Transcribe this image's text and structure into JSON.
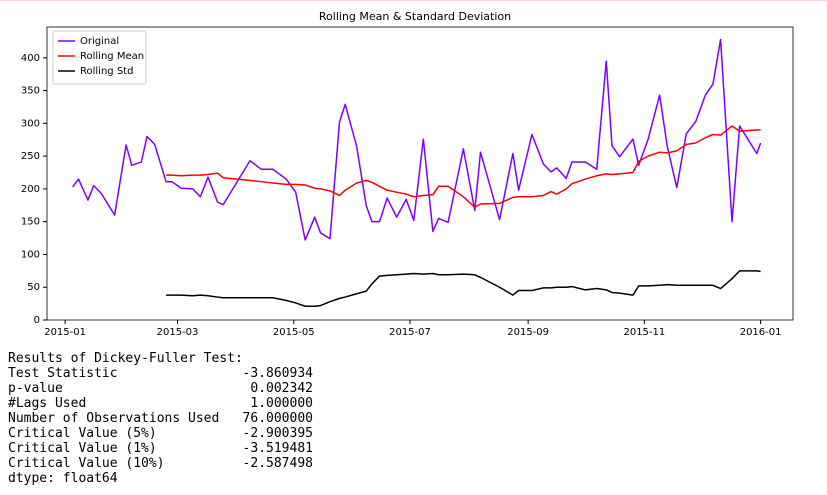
{
  "chart_data": {
    "type": "line",
    "title": "Rolling Mean & Standard Deviation",
    "x": [
      4,
      7,
      12,
      15,
      19,
      26,
      32,
      35,
      40,
      43,
      47,
      53,
      56,
      61,
      67,
      71,
      75,
      80,
      83,
      97,
      103,
      109,
      116,
      121,
      126,
      131,
      134,
      139,
      144,
      147,
      153,
      158,
      161,
      165,
      169,
      174,
      179,
      183,
      188,
      193,
      196,
      201,
      209,
      215,
      218,
      228,
      235,
      238,
      245,
      251,
      255,
      258,
      263,
      266,
      273,
      279,
      284,
      287,
      291,
      298,
      301,
      306,
      312,
      316,
      321,
      326,
      331,
      336,
      340,
      344,
      350,
      354,
      363,
      365
    ],
    "series": [
      {
        "name": "Original",
        "color": "#7f00ff",
        "values": [
          203,
          215,
          183,
          205,
          193,
          160,
          267,
          236,
          241,
          280,
          268,
          211,
          211,
          201,
          200,
          188,
          218,
          180,
          176,
          243,
          230,
          230,
          215,
          195,
          122,
          157,
          133,
          124,
          302,
          329,
          265,
          175,
          150,
          150,
          186,
          157,
          184,
          152,
          276,
          135,
          155,
          149,
          261,
          167,
          256,
          153,
          254,
          198,
          283,
          238,
          226,
          232,
          216,
          241,
          241,
          230,
          395,
          266,
          249,
          276,
          236,
          276,
          343,
          265,
          202,
          284,
          303,
          343,
          360,
          428,
          150,
          296,
          254,
          270
        ]
      },
      {
        "name": "Rolling Mean",
        "color": "#ff0000",
        "values": [
          null,
          null,
          null,
          null,
          null,
          null,
          null,
          null,
          null,
          null,
          null,
          221,
          221,
          220,
          221,
          221,
          222,
          224,
          217,
          213,
          211,
          209,
          207,
          207,
          206,
          201,
          200,
          197,
          190,
          198,
          209,
          213,
          210,
          204,
          198,
          195,
          192,
          188,
          190,
          191,
          204,
          204,
          188,
          172,
          177,
          178,
          187,
          188,
          188,
          190,
          196,
          192,
          200,
          208,
          215,
          220,
          223,
          222,
          223,
          225,
          242,
          250,
          256,
          255,
          258,
          268,
          270,
          278,
          283,
          282,
          296,
          288,
          290,
          290
        ]
      },
      {
        "name": "Rolling Std",
        "color": "#000000",
        "values": [
          null,
          null,
          null,
          null,
          null,
          null,
          null,
          null,
          null,
          null,
          null,
          38,
          38,
          38,
          37,
          38,
          37,
          35,
          34,
          34,
          34,
          34,
          30,
          26,
          21,
          21,
          22,
          28,
          33,
          35,
          40,
          44,
          55,
          67,
          68,
          69,
          70,
          71,
          70,
          71,
          69,
          69,
          70,
          69,
          65,
          50,
          38,
          45,
          45,
          49,
          49,
          50,
          50,
          51,
          46,
          48,
          46,
          42,
          41,
          38,
          52,
          52,
          53,
          54,
          53,
          53,
          53,
          53,
          53,
          48,
          63,
          75,
          75,
          74
        ]
      }
    ],
    "xlim": [
      -9.5,
      382
    ],
    "xticks": [
      {
        "value": 0,
        "label": "2015-01"
      },
      {
        "value": 59,
        "label": "2015-03"
      },
      {
        "value": 120,
        "label": "2015-05"
      },
      {
        "value": 181,
        "label": "2015-07"
      },
      {
        "value": 243,
        "label": "2015-09"
      },
      {
        "value": 304,
        "label": "2015-11"
      },
      {
        "value": 365,
        "label": "2016-01"
      }
    ],
    "ylim": [
      0,
      447
    ],
    "yticks": [
      0,
      50,
      100,
      150,
      200,
      250,
      300,
      350,
      400
    ],
    "legend": "upper left"
  },
  "output": {
    "heading": "Results of Dickey-Fuller Test:",
    "rows": [
      [
        "Test Statistic",
        "-3.860934"
      ],
      [
        "p-value",
        "0.002342"
      ],
      [
        "#Lags Used",
        "1.000000"
      ],
      [
        "Number of Observations Used",
        "76.000000"
      ],
      [
        "Critical Value (5%)",
        "-2.900395"
      ],
      [
        "Critical Value (1%)",
        "-3.519481"
      ],
      [
        "Critical Value (10%)",
        "-2.587498"
      ]
    ],
    "dtype": "dtype: float64"
  }
}
